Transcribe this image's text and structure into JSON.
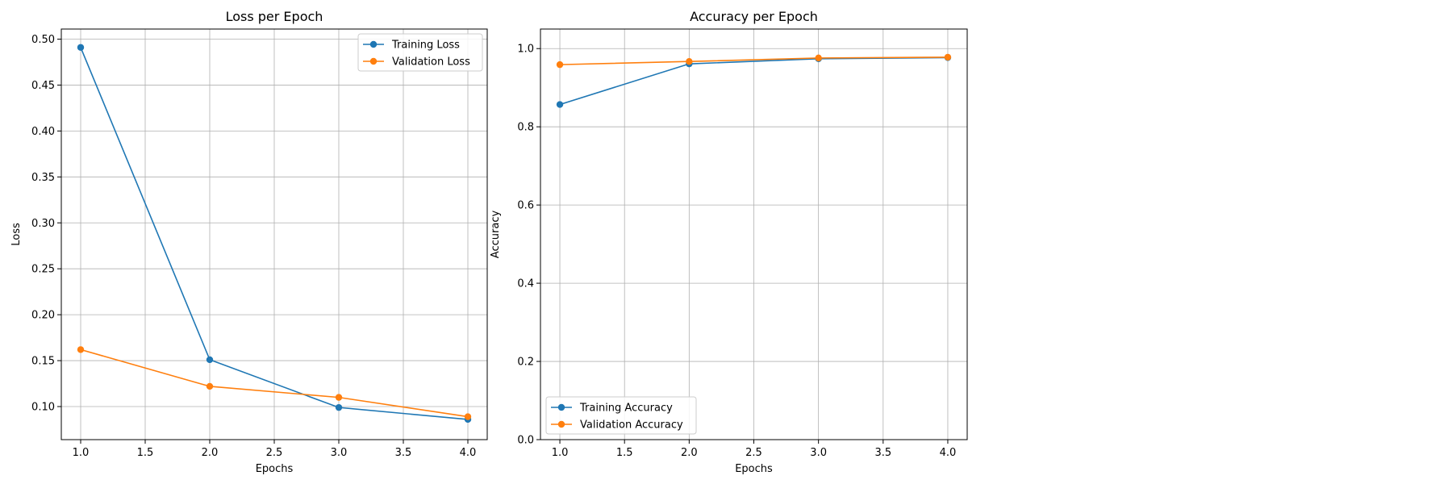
{
  "colors": {
    "training": "#1f77b4",
    "validation": "#ff7f0e",
    "grid": "#b0b0b0",
    "axis": "#000000",
    "background": "#ffffff"
  },
  "chart_data": [
    {
      "type": "line",
      "title": "Loss per Epoch",
      "xlabel": "Epochs",
      "ylabel": "Loss",
      "x": [
        1.0,
        2.0,
        3.0,
        4.0
      ],
      "xlim": [
        0.85,
        4.15
      ],
      "ylim": [
        0.064,
        0.511
      ],
      "xticks": [
        1.0,
        1.5,
        2.0,
        2.5,
        3.0,
        3.5,
        4.0
      ],
      "xtick_labels": [
        "1.0",
        "1.5",
        "2.0",
        "2.5",
        "3.0",
        "3.5",
        "4.0"
      ],
      "yticks": [
        0.1,
        0.15,
        0.2,
        0.25,
        0.3,
        0.35,
        0.4,
        0.45,
        0.5
      ],
      "ytick_labels": [
        "0.10",
        "0.15",
        "0.20",
        "0.25",
        "0.30",
        "0.35",
        "0.40",
        "0.45",
        "0.50"
      ],
      "grid": true,
      "legend_position": "top-right",
      "series": [
        {
          "name": "Training Loss",
          "color": "#1f77b4",
          "values": [
            0.491,
            0.151,
            0.099,
            0.086
          ]
        },
        {
          "name": "Validation Loss",
          "color": "#ff7f0e",
          "values": [
            0.162,
            0.122,
            0.11,
            0.089
          ]
        }
      ]
    },
    {
      "type": "line",
      "title": "Accuracy per Epoch",
      "xlabel": "Epochs",
      "ylabel": "Accuracy",
      "x": [
        1.0,
        2.0,
        3.0,
        4.0
      ],
      "xlim": [
        0.85,
        4.15
      ],
      "ylim": [
        0.0,
        1.05
      ],
      "xticks": [
        1.0,
        1.5,
        2.0,
        2.5,
        3.0,
        3.5,
        4.0
      ],
      "xtick_labels": [
        "1.0",
        "1.5",
        "2.0",
        "2.5",
        "3.0",
        "3.5",
        "4.0"
      ],
      "yticks": [
        0.0,
        0.2,
        0.4,
        0.6,
        0.8,
        1.0
      ],
      "ytick_labels": [
        "0.0",
        "0.2",
        "0.4",
        "0.6",
        "0.8",
        "1.0"
      ],
      "grid": true,
      "legend_position": "bottom-left",
      "series": [
        {
          "name": "Training Accuracy",
          "color": "#1f77b4",
          "values": [
            0.857,
            0.961,
            0.974,
            0.977
          ]
        },
        {
          "name": "Validation Accuracy",
          "color": "#ff7f0e",
          "values": [
            0.959,
            0.967,
            0.976,
            0.978
          ]
        }
      ]
    }
  ]
}
